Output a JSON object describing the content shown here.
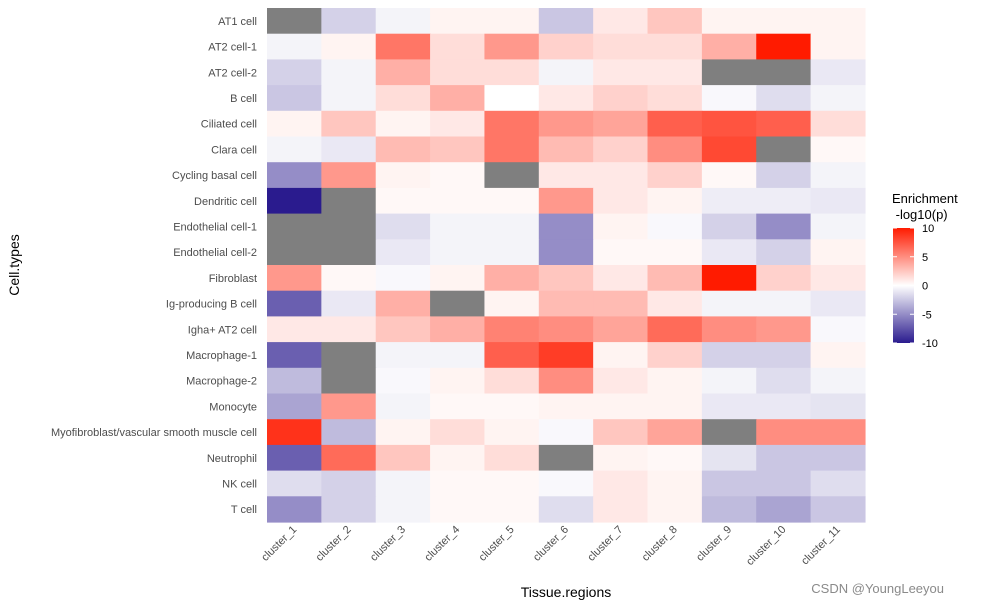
{
  "chart_data": {
    "type": "heatmap",
    "xlabel": "Tissue.regions",
    "ylabel": "Cell.types",
    "x": [
      "cluster_1",
      "cluster_2",
      "cluster_3",
      "cluster_4",
      "cluster_5",
      "cluster_6",
      "cluster_7",
      "cluster_8",
      "cluster_9",
      "cluster_10",
      "cluster_11"
    ],
    "y": [
      "AT1 cell",
      "AT2 cell-1",
      "AT2 cell-2",
      "B cell",
      "Ciliated cell",
      "Clara cell",
      "Cycling basal cell",
      "Dendritic cell",
      "Endothelial cell-1",
      "Endothelial cell-2",
      "Fibroblast",
      "Ig-producing B cell",
      "Igha+ AT2  cell",
      "Macrophage-1",
      "Macrophage-2",
      "Monocyte",
      "Myofibroblast/vascular smooth muscle cell",
      "Neutrophil",
      "NK cell",
      "T cell"
    ],
    "values": [
      [
        null,
        -2,
        -0.5,
        0.5,
        0.5,
        -2.5,
        1,
        2.5,
        0.5,
        0.5,
        0.5
      ],
      [
        -0.5,
        0.5,
        6,
        1.5,
        4.5,
        2,
        1.5,
        1.5,
        3.5,
        10,
        0.5
      ],
      [
        -2,
        -0.5,
        3.5,
        1.5,
        1.5,
        -0.5,
        1,
        1,
        null,
        null,
        -1
      ],
      [
        -2.5,
        -0.5,
        1.5,
        3.5,
        0,
        1,
        2,
        1.5,
        -0.3,
        -1.5,
        -0.5
      ],
      [
        0.5,
        2.5,
        0.5,
        1,
        6,
        4.5,
        4,
        7,
        7.5,
        7,
        1.5
      ],
      [
        -0.5,
        -1,
        3,
        2.5,
        6,
        3,
        2,
        5,
        8,
        null,
        0.3
      ],
      [
        -5,
        4.5,
        0.5,
        0.3,
        null,
        1,
        1,
        2,
        0.3,
        -2,
        -0.5
      ],
      [
        -10,
        null,
        0.3,
        0.3,
        0.3,
        4.5,
        1,
        0.5,
        -0.8,
        -0.8,
        -1
      ],
      [
        null,
        null,
        -1.5,
        -0.5,
        -0.5,
        -5,
        0.5,
        -0.3,
        -2,
        -5,
        -0.5
      ],
      [
        null,
        null,
        -1,
        -0.5,
        -0.5,
        -5,
        0.3,
        0.3,
        -1,
        -2,
        0.5
      ],
      [
        4.5,
        0.3,
        -0.3,
        0.5,
        3.5,
        2.5,
        1,
        3,
        10,
        2,
        1
      ],
      [
        -7,
        -1,
        3.5,
        null,
        0.5,
        3,
        3,
        1,
        -0.5,
        -0.5,
        -1
      ],
      [
        1,
        1,
        2.5,
        3.5,
        5.5,
        5,
        4,
        6.5,
        5,
        4.5,
        -0.3
      ],
      [
        -7,
        null,
        -0.5,
        -0.5,
        7,
        8.5,
        0.5,
        2,
        -2,
        -2,
        0.5
      ],
      [
        -3,
        null,
        -0.3,
        0.5,
        1.5,
        5,
        1,
        0.5,
        -0.5,
        -1.5,
        -0.5
      ],
      [
        -4,
        4.5,
        -0.5,
        0.3,
        0.3,
        0.5,
        0.5,
        0.5,
        -1,
        -1,
        -1.2
      ],
      [
        9,
        -3,
        0.5,
        1.5,
        0.5,
        -0.3,
        2.5,
        4,
        null,
        5,
        5
      ],
      [
        -7,
        6.5,
        2.5,
        0.5,
        1.5,
        null,
        0.5,
        0.3,
        -1.2,
        -2.5,
        -2.5
      ],
      [
        -1.5,
        -2,
        -0.5,
        0.3,
        0.3,
        -0.3,
        1,
        0.5,
        -2.5,
        -2.5,
        -1.5
      ],
      [
        -5,
        -2,
        -0.5,
        0.3,
        0.3,
        -1.5,
        1,
        0.5,
        -3,
        -4,
        -2.5
      ]
    ],
    "missing_color": "#7f7f7f",
    "color_scale": {
      "low": "#2a1b8e",
      "mid": "#ffffff",
      "high": "#ff1b00",
      "limits": [
        -10,
        10
      ]
    },
    "legend": {
      "title_line1": "Enrichment",
      "title_line2": " -log10(p)",
      "ticks": [
        "10",
        "5",
        "0",
        "-5",
        "-10"
      ],
      "tick_values": [
        10,
        5,
        0,
        -5,
        -10
      ],
      "placement": "right"
    },
    "panel_background": "#ebebeb"
  },
  "watermark": "CSDN @YoungLeeyou"
}
